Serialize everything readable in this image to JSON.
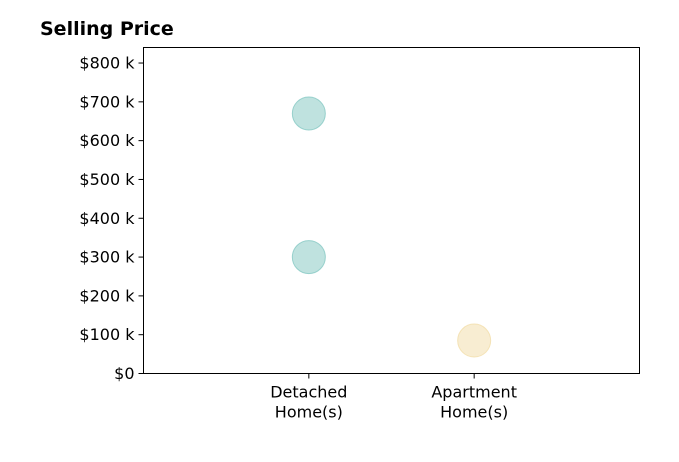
{
  "chart_data": {
    "type": "scatter",
    "title": "Selling Price",
    "xlabel": "",
    "ylabel": "",
    "categories": [
      "Detached Home(s)",
      "Apartment Home(s)"
    ],
    "category_tick_lines": [
      [
        "Detached",
        "Home(s)"
      ],
      [
        "Apartment",
        "Home(s)"
      ]
    ],
    "x_range": [
      -1,
      2
    ],
    "ylim": [
      0,
      840000
    ],
    "y_ticks": [
      0,
      100000,
      200000,
      300000,
      400000,
      500000,
      600000,
      700000,
      800000
    ],
    "y_tick_labels": [
      "$0",
      "$100 k",
      "$200 k",
      "$300 k",
      "$400 k",
      "$500 k",
      "$600 k",
      "$700 k",
      "$800 k"
    ],
    "points": [
      {
        "category": "Detached Home(s)",
        "value": 300000,
        "color": "#7fc6c0"
      },
      {
        "category": "Detached Home(s)",
        "value": 670000,
        "color": "#7fc6c0"
      },
      {
        "category": "Apartment Home(s)",
        "value": 85000,
        "color": "#f2dca6"
      }
    ],
    "colors": {
      "detached": "#7fc6c0",
      "apartment": "#f2dca6"
    },
    "grid": false,
    "legend": "none"
  }
}
